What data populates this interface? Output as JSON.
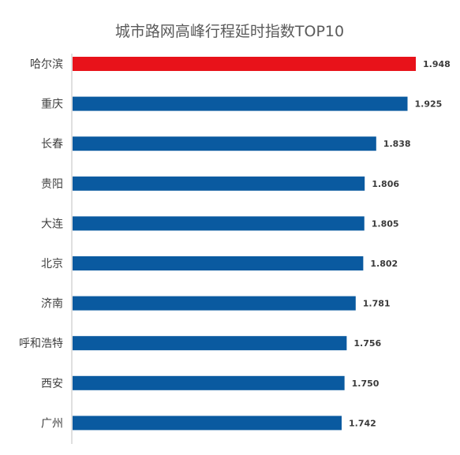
{
  "chart_data": {
    "type": "bar",
    "orientation": "horizontal",
    "title": "城市路网高峰行程延时指数TOP10",
    "categories": [
      "哈尔滨",
      "重庆",
      "长春",
      "贵阳",
      "大连",
      "北京",
      "济南",
      "呼和浩特",
      "西安",
      "广州"
    ],
    "values": [
      1.948,
      1.925,
      1.838,
      1.806,
      1.805,
      1.802,
      1.781,
      1.756,
      1.75,
      1.742
    ],
    "value_labels": [
      "1.948",
      "1.925",
      "1.838",
      "1.806",
      "1.805",
      "1.802",
      "1.781",
      "1.756",
      "1.750",
      "1.742"
    ],
    "highlight_index": 0,
    "colors": {
      "bar": "#0a5aa0",
      "highlight": "#e8121a",
      "axis": "#bfbfbf"
    },
    "xlabel": "",
    "ylabel": "",
    "grid": false,
    "legend": "none"
  }
}
